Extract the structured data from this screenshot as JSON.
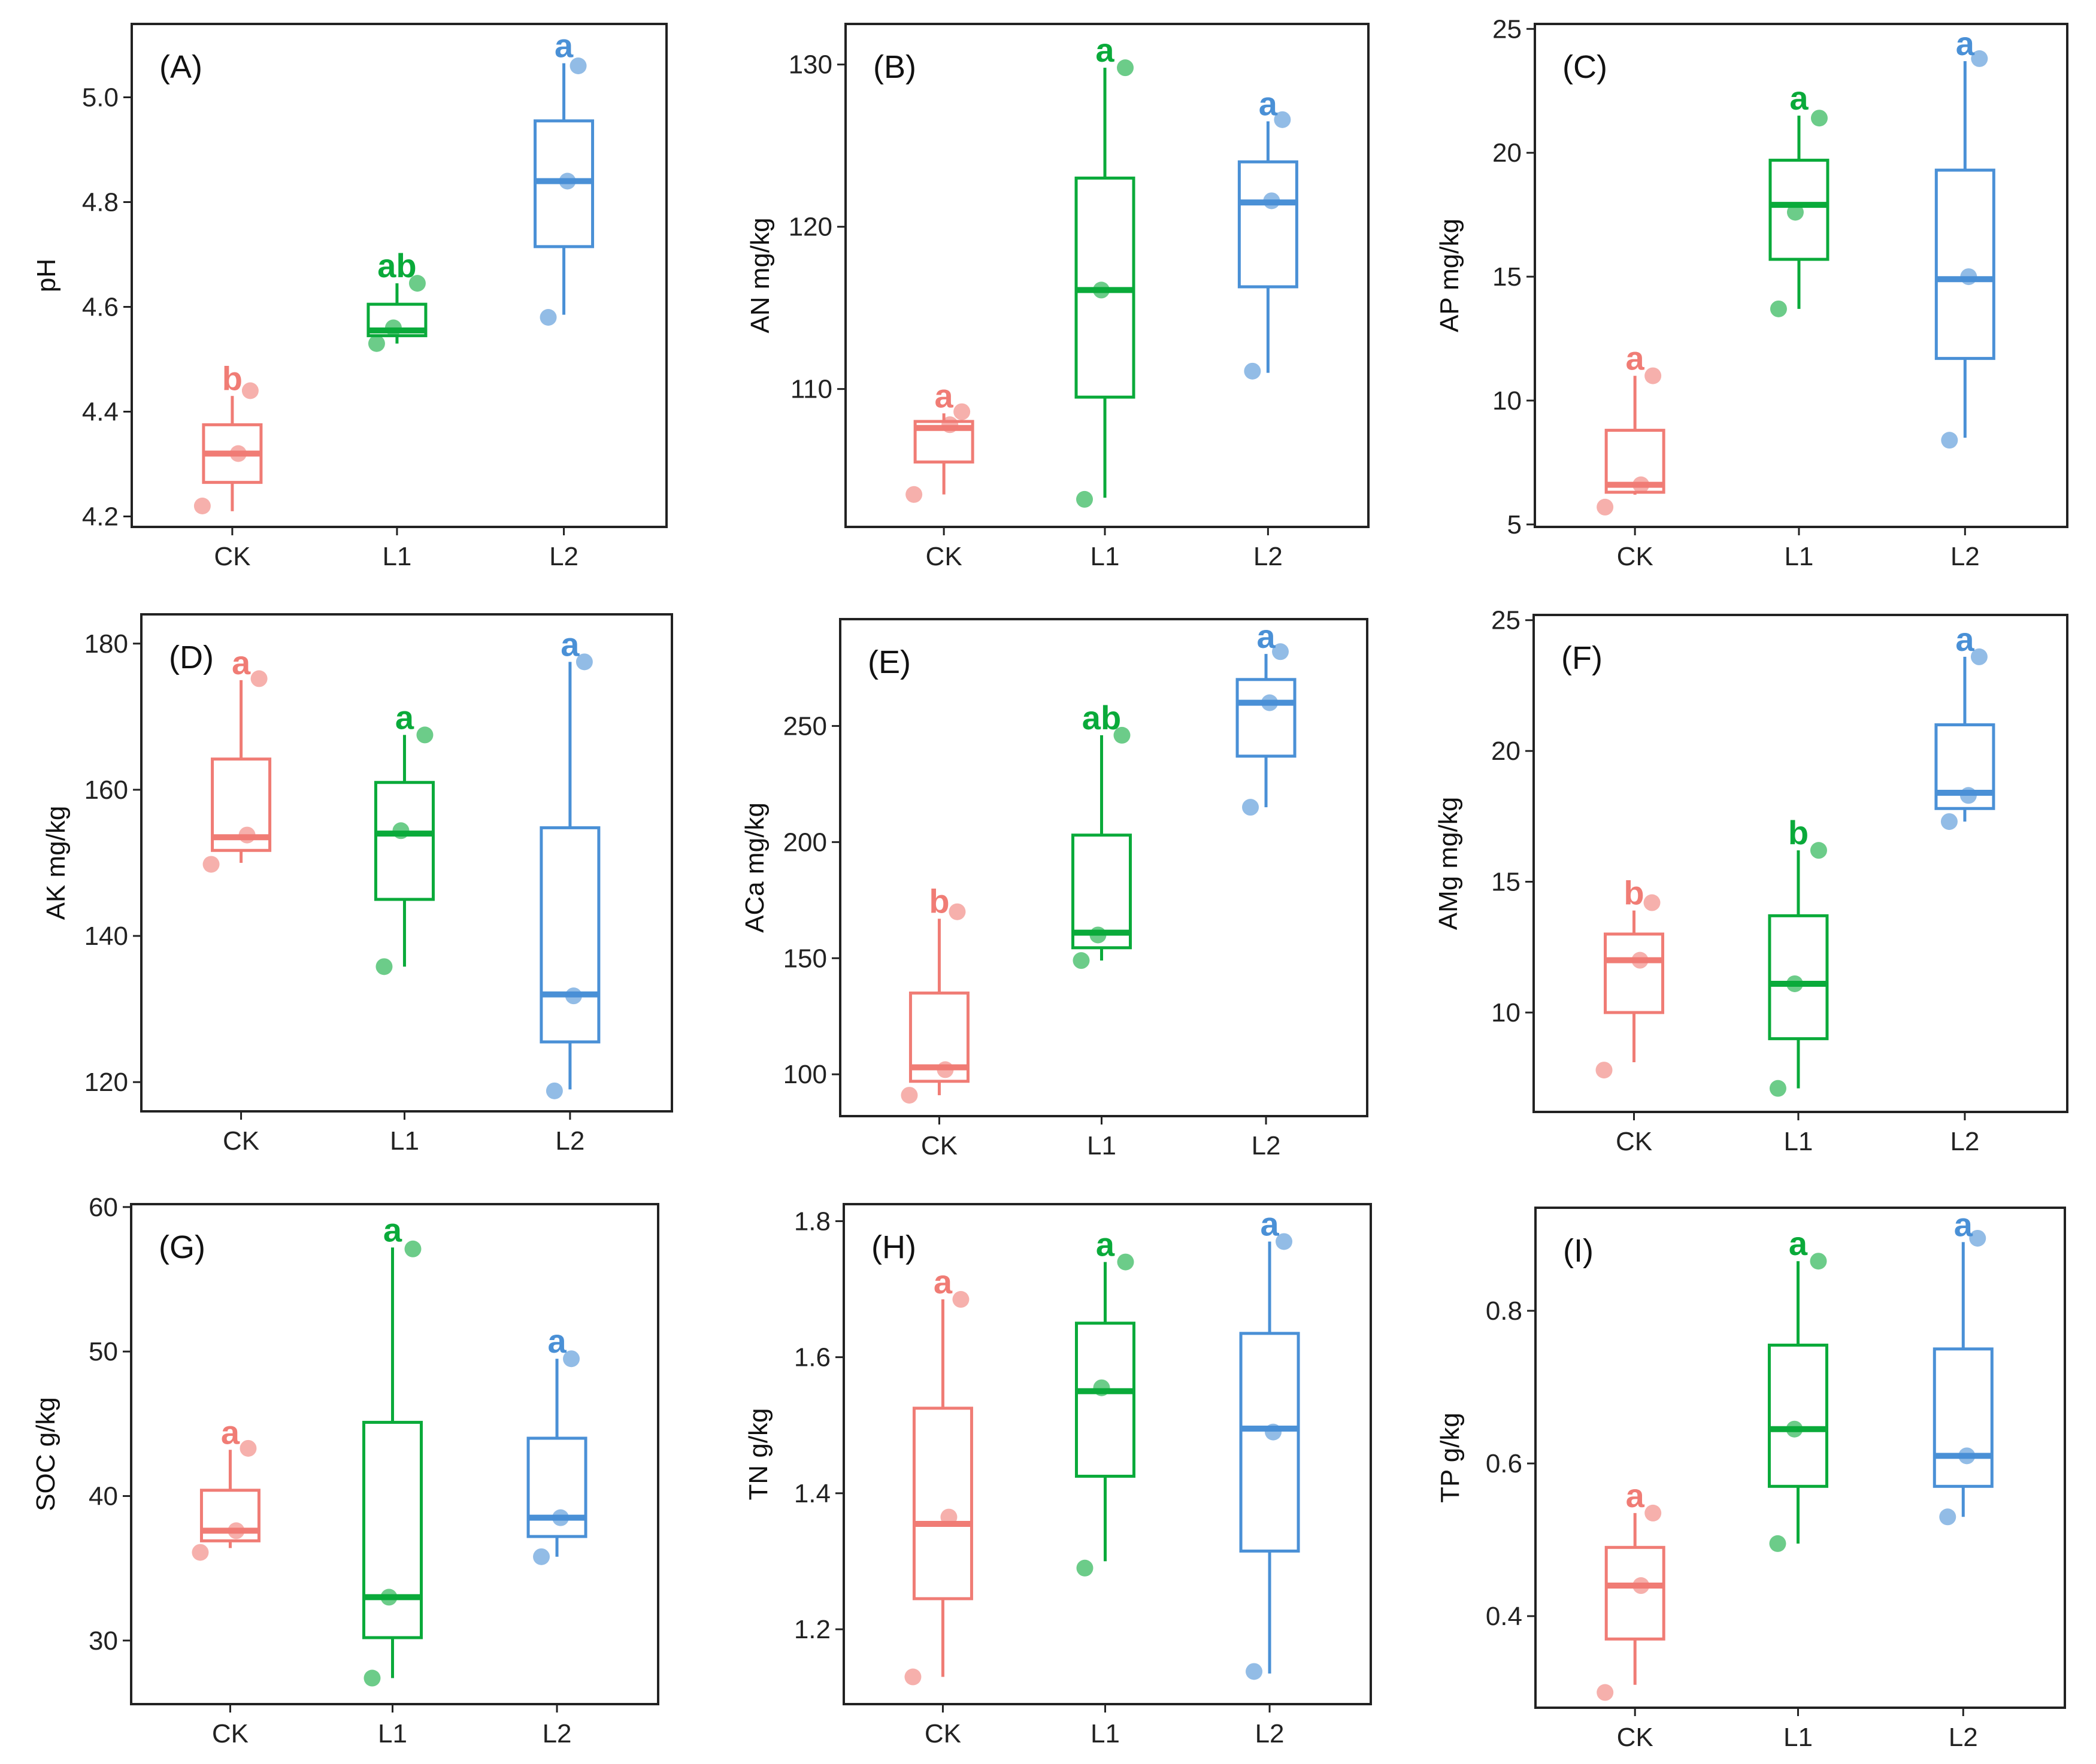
{
  "colors": {
    "CK": "#f07c75",
    "L1": "#0aaa3a",
    "L2": "#4a90d6"
  },
  "chart_data": [
    {
      "panel": "(A)",
      "type": "box",
      "ylabel": "pH",
      "ylim": [
        4.18,
        5.14
      ],
      "yticks": [
        4.2,
        4.4,
        4.6,
        4.8,
        5.0
      ],
      "ytick_labels": [
        "4.2",
        "4.4",
        "4.6",
        "4.8",
        "5.0"
      ],
      "groups": [
        {
          "name": "CK",
          "min": 4.21,
          "q1": 4.265,
          "median": 4.32,
          "q3": 4.375,
          "max": 4.43,
          "points": [
            4.22,
            4.32,
            4.44
          ],
          "sig": "b"
        },
        {
          "name": "L1",
          "min": 4.53,
          "q1": 4.545,
          "median": 4.555,
          "q3": 4.605,
          "max": 4.645,
          "points": [
            4.53,
            4.56,
            4.645
          ],
          "sig": "ab"
        },
        {
          "name": "L2",
          "min": 4.585,
          "q1": 4.715,
          "median": 4.84,
          "q3": 4.955,
          "max": 5.065,
          "points": [
            4.58,
            4.84,
            5.06
          ],
          "sig": "a"
        }
      ]
    },
    {
      "panel": "(B)",
      "type": "box",
      "ylabel": "AN mg/kg",
      "ylim": [
        101.5,
        132.5
      ],
      "yticks": [
        110,
        120,
        130
      ],
      "ytick_labels": [
        "110",
        "120",
        "130"
      ],
      "groups": [
        {
          "name": "CK",
          "min": 103.5,
          "q1": 105.5,
          "median": 107.6,
          "q3": 108.0,
          "max": 108.5,
          "points": [
            103.5,
            107.8,
            108.6
          ],
          "sig": "a"
        },
        {
          "name": "L1",
          "min": 103.3,
          "q1": 109.5,
          "median": 116.1,
          "q3": 123.0,
          "max": 129.8,
          "points": [
            103.2,
            116.1,
            129.8
          ],
          "sig": "a"
        },
        {
          "name": "L2",
          "min": 111.0,
          "q1": 116.3,
          "median": 121.5,
          "q3": 124.0,
          "max": 126.5,
          "points": [
            111.1,
            121.6,
            126.6
          ],
          "sig": "a"
        }
      ]
    },
    {
      "panel": "(C)",
      "type": "box",
      "ylabel": "AP mg/kg",
      "ylim": [
        4.9,
        25.2
      ],
      "yticks": [
        5,
        10,
        15,
        20,
        25
      ],
      "ytick_labels": [
        "5",
        "10",
        "15",
        "20",
        "25"
      ],
      "groups": [
        {
          "name": "CK",
          "min": 6.2,
          "q1": 6.3,
          "median": 6.6,
          "q3": 8.8,
          "max": 11.0,
          "points": [
            5.7,
            6.6,
            11.0
          ],
          "sig": "a"
        },
        {
          "name": "L1",
          "min": 13.7,
          "q1": 15.7,
          "median": 17.9,
          "q3": 19.7,
          "max": 21.5,
          "points": [
            13.7,
            17.6,
            21.4
          ],
          "sig": "a"
        },
        {
          "name": "L2",
          "min": 8.5,
          "q1": 11.7,
          "median": 14.9,
          "q3": 19.3,
          "max": 23.7,
          "points": [
            8.4,
            15.0,
            23.8
          ],
          "sig": "a"
        }
      ]
    },
    {
      "panel": "(D)",
      "type": "box",
      "ylabel": "AK mg/kg",
      "ylim": [
        116.0,
        184.0
      ],
      "yticks": [
        120,
        140,
        160,
        180
      ],
      "ytick_labels": [
        "120",
        "140",
        "160",
        "180"
      ],
      "groups": [
        {
          "name": "CK",
          "min": 150.0,
          "q1": 151.7,
          "median": 153.5,
          "q3": 164.2,
          "max": 175.0,
          "points": [
            149.8,
            153.8,
            175.2
          ],
          "sig": "a"
        },
        {
          "name": "L1",
          "min": 135.8,
          "q1": 145.0,
          "median": 154.0,
          "q3": 161.0,
          "max": 167.5,
          "points": [
            135.8,
            154.4,
            167.5
          ],
          "sig": "a"
        },
        {
          "name": "L2",
          "min": 119.0,
          "q1": 125.5,
          "median": 132.0,
          "q3": 154.8,
          "max": 177.5,
          "points": [
            118.8,
            131.8,
            177.5
          ],
          "sig": "a"
        }
      ]
    },
    {
      "panel": "(E)",
      "type": "box",
      "ylabel": "ACa mg/kg",
      "ylim": [
        82.0,
        296.0
      ],
      "yticks": [
        100,
        150,
        200,
        250
      ],
      "ytick_labels": [
        "100",
        "150",
        "200",
        "250"
      ],
      "groups": [
        {
          "name": "CK",
          "min": 91.0,
          "q1": 97.0,
          "median": 103.0,
          "q3": 135.0,
          "max": 167.0,
          "points": [
            91.0,
            102.0,
            170.0
          ],
          "sig": "b"
        },
        {
          "name": "L1",
          "min": 149.0,
          "q1": 154.5,
          "median": 161.0,
          "q3": 203.0,
          "max": 246.0,
          "points": [
            149.0,
            160.0,
            246.0
          ],
          "sig": "ab"
        },
        {
          "name": "L2",
          "min": 215.0,
          "q1": 237.0,
          "median": 260.0,
          "q3": 270.0,
          "max": 281.0,
          "points": [
            215.0,
            260.0,
            282.0
          ],
          "sig": "a"
        }
      ]
    },
    {
      "panel": "(F)",
      "type": "box",
      "ylabel": "AMg mg/kg",
      "ylim": [
        6.2,
        25.2
      ],
      "yticks": [
        10,
        15,
        20,
        25
      ],
      "ytick_labels": [
        "10",
        "15",
        "20",
        "25"
      ],
      "groups": [
        {
          "name": "CK",
          "min": 8.1,
          "q1": 10.0,
          "median": 12.0,
          "q3": 13.0,
          "max": 13.9,
          "points": [
            7.8,
            12.0,
            14.2
          ],
          "sig": "b"
        },
        {
          "name": "L1",
          "min": 7.1,
          "q1": 9.0,
          "median": 11.1,
          "q3": 13.7,
          "max": 16.2,
          "points": [
            7.1,
            11.1,
            16.2
          ],
          "sig": "b"
        },
        {
          "name": "L2",
          "min": 17.3,
          "q1": 17.8,
          "median": 18.4,
          "q3": 21.0,
          "max": 23.6,
          "points": [
            17.3,
            18.3,
            23.6
          ],
          "sig": "a"
        }
      ]
    },
    {
      "panel": "(G)",
      "type": "box",
      "ylabel": "SOC g/kg",
      "ylim": [
        25.6,
        60.2
      ],
      "yticks": [
        30,
        40,
        50,
        60
      ],
      "ytick_labels": [
        "30",
        "40",
        "50",
        "60"
      ],
      "groups": [
        {
          "name": "CK",
          "min": 36.4,
          "q1": 36.9,
          "median": 37.6,
          "q3": 40.4,
          "max": 43.2,
          "points": [
            36.1,
            37.6,
            43.3
          ],
          "sig": "a"
        },
        {
          "name": "L1",
          "min": 27.4,
          "q1": 30.2,
          "median": 33.0,
          "q3": 45.1,
          "max": 57.2,
          "points": [
            27.4,
            33.0,
            57.1
          ],
          "sig": "a"
        },
        {
          "name": "L2",
          "min": 35.8,
          "q1": 37.2,
          "median": 38.5,
          "q3": 44.0,
          "max": 49.5,
          "points": [
            35.8,
            38.5,
            49.5
          ],
          "sig": "a"
        }
      ]
    },
    {
      "panel": "(H)",
      "type": "box",
      "ylabel": "TN g/kg",
      "ylim": [
        1.09,
        1.825
      ],
      "yticks": [
        1.2,
        1.4,
        1.6,
        1.8
      ],
      "ytick_labels": [
        "1.2",
        "1.4",
        "1.6",
        "1.8"
      ],
      "groups": [
        {
          "name": "CK",
          "min": 1.13,
          "q1": 1.245,
          "median": 1.355,
          "q3": 1.525,
          "max": 1.685,
          "points": [
            1.13,
            1.365,
            1.685
          ],
          "sig": "a"
        },
        {
          "name": "L1",
          "min": 1.3,
          "q1": 1.425,
          "median": 1.55,
          "q3": 1.65,
          "max": 1.74,
          "points": [
            1.29,
            1.555,
            1.74
          ],
          "sig": "a"
        },
        {
          "name": "L2",
          "min": 1.135,
          "q1": 1.315,
          "median": 1.495,
          "q3": 1.635,
          "max": 1.77,
          "points": [
            1.138,
            1.49,
            1.77
          ],
          "sig": "a"
        }
      ]
    },
    {
      "panel": "(I)",
      "type": "box",
      "ylabel": "TP g/kg",
      "ylim": [
        0.28,
        0.935
      ],
      "yticks": [
        0.4,
        0.6,
        0.8
      ],
      "ytick_labels": [
        "0.4",
        "0.6",
        "0.8"
      ],
      "groups": [
        {
          "name": "CK",
          "min": 0.31,
          "q1": 0.37,
          "median": 0.44,
          "q3": 0.49,
          "max": 0.535,
          "points": [
            0.3,
            0.44,
            0.535
          ],
          "sig": "a"
        },
        {
          "name": "L1",
          "min": 0.495,
          "q1": 0.57,
          "median": 0.645,
          "q3": 0.755,
          "max": 0.865,
          "points": [
            0.495,
            0.645,
            0.865
          ],
          "sig": "a"
        },
        {
          "name": "L2",
          "min": 0.53,
          "q1": 0.57,
          "median": 0.61,
          "q3": 0.75,
          "max": 0.89,
          "points": [
            0.53,
            0.61,
            0.895
          ],
          "sig": "a"
        }
      ]
    }
  ]
}
